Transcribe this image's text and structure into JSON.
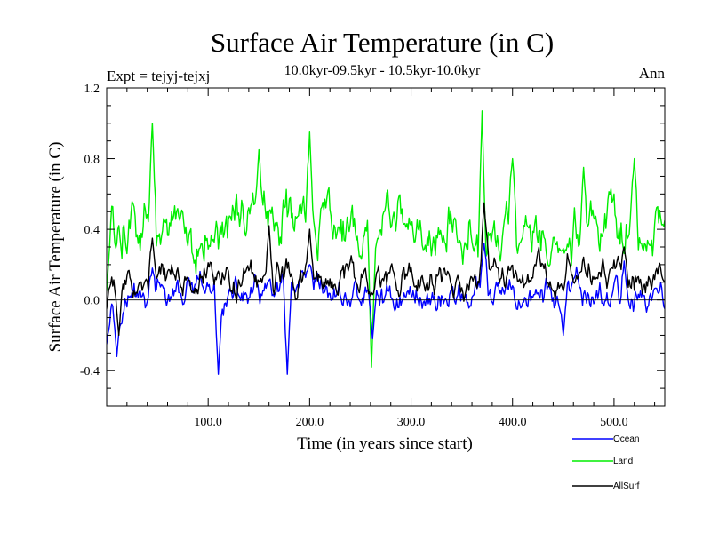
{
  "chart_data": {
    "type": "line",
    "title": "Surface Air Temperature (in C)",
    "subtitle": "10.0kyr-09.5kyr - 10.5kyr-10.0kyr",
    "expt_label": "Expt = tejyj-tejxj",
    "season_label": "Ann",
    "xlabel": "Time (in years since start)",
    "ylabel": "Surface Air Temperature (in C)",
    "xlim": [
      0,
      550
    ],
    "ylim": [
      -0.6,
      1.2
    ],
    "xticks": [
      100,
      200,
      300,
      400,
      500
    ],
    "xtick_labels": [
      "100.0",
      "200.0",
      "300.0",
      "400.0",
      "500.0"
    ],
    "yticks": [
      -0.4,
      0.0,
      0.4,
      0.8,
      1.2
    ],
    "ytick_labels": [
      "-0.4",
      "0.0",
      "0.4",
      "0.8",
      "1.2"
    ],
    "zero_line": 0.0,
    "n_points": 551,
    "series": [
      {
        "name": "Ocean",
        "color": "#0000ff",
        "mean": 0.02,
        "amplitude": 0.1,
        "keypoints": [
          [
            0,
            -0.25
          ],
          [
            10,
            -0.32
          ],
          [
            45,
            0.18
          ],
          [
            110,
            -0.42
          ],
          [
            178,
            -0.42
          ],
          [
            200,
            0.2
          ],
          [
            262,
            -0.22
          ],
          [
            372,
            0.32
          ],
          [
            450,
            -0.2
          ],
          [
            510,
            0.22
          ],
          [
            550,
            -0.05
          ]
        ]
      },
      {
        "name": "Land",
        "color": "#00ee00",
        "mean": 0.4,
        "amplitude": 0.18,
        "keypoints": [
          [
            0,
            0.05
          ],
          [
            45,
            1.0
          ],
          [
            150,
            0.85
          ],
          [
            200,
            0.95
          ],
          [
            261,
            -0.38
          ],
          [
            370,
            1.07
          ],
          [
            400,
            0.8
          ],
          [
            470,
            0.75
          ],
          [
            520,
            0.8
          ],
          [
            550,
            0.45
          ]
        ]
      },
      {
        "name": "AllSurf",
        "color": "#000000",
        "mean": 0.13,
        "amplitude": 0.1,
        "keypoints": [
          [
            0,
            -0.05
          ],
          [
            12,
            -0.2
          ],
          [
            45,
            0.35
          ],
          [
            160,
            0.42
          ],
          [
            200,
            0.4
          ],
          [
            262,
            0.03
          ],
          [
            372,
            0.55
          ],
          [
            450,
            0.05
          ],
          [
            510,
            0.3
          ],
          [
            550,
            0.1
          ]
        ]
      }
    ]
  },
  "legend": {
    "items": [
      {
        "label": "Ocean",
        "color": "#0000ff"
      },
      {
        "label": "Land",
        "color": "#00ee00"
      },
      {
        "label": "AllSurf",
        "color": "#000000"
      }
    ]
  }
}
